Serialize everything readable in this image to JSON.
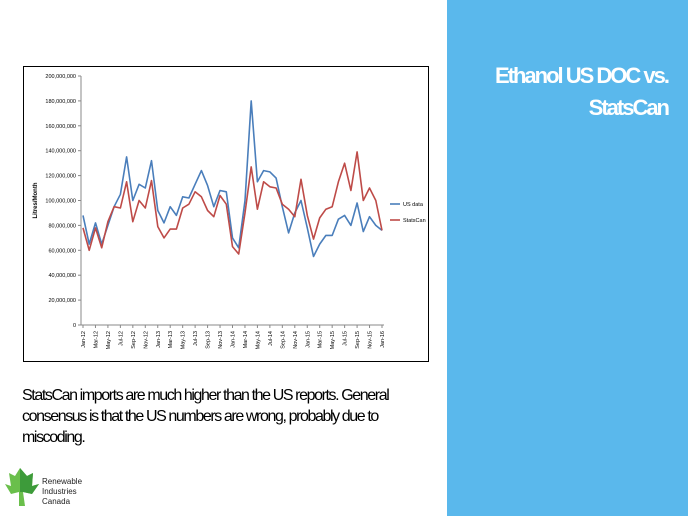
{
  "slide": {
    "title_line1": "Ethanol US DOC vs.",
    "title_line2": "StatsCan",
    "body": "StatsCan imports are much higher than the US reports. General consensus is that the US numbers are wrong, probably due to miscoding.",
    "logo_lines": [
      "Renewable",
      "Industries",
      "Canada"
    ]
  },
  "colors": {
    "sidebar": "#5ab8ec",
    "us_data": "#4a7ebb",
    "statscan": "#be4b48"
  },
  "chart_data": {
    "type": "line",
    "ylabel": "Litres/Month",
    "ylim": [
      0,
      200000000
    ],
    "yticks": [
      0,
      20000000,
      40000000,
      60000000,
      80000000,
      100000000,
      120000000,
      140000000,
      160000000,
      180000000,
      200000000
    ],
    "ytick_labels": [
      "0",
      "20,000,000",
      "40,000,000",
      "60,000,000",
      "80,000,000",
      "100,000,000",
      "120,000,000",
      "140,000,000",
      "160,000,000",
      "180,000,000",
      "200,000,000"
    ],
    "x_count": 49,
    "xtick_labels": [
      "Jan-12",
      "Mar-12",
      "May-12",
      "Jul-12",
      "Sep-12",
      "Nov-12",
      "Jan-13",
      "Mar-13",
      "May-13",
      "Jul-13",
      "Sep-13",
      "Nov-13",
      "Jan-14",
      "Mar-14",
      "May-14",
      "Jul-14",
      "Sep-14",
      "Nov-14",
      "Jan-15",
      "Mar-15",
      "May-15",
      "Jul-15",
      "Sep-15",
      "Nov-15",
      "Jan-16"
    ],
    "legend_position": "right",
    "series": [
      {
        "name": "US data",
        "values": [
          88,
          65,
          82,
          65,
          80,
          95,
          105,
          135,
          100,
          113,
          110,
          132,
          92,
          82,
          95,
          88,
          103,
          102,
          113,
          124,
          112,
          95,
          108,
          107,
          70,
          62,
          100,
          180,
          115,
          124,
          123,
          118,
          95,
          74,
          90,
          100,
          78,
          55,
          65,
          72,
          72,
          85,
          88,
          80,
          98,
          75,
          87,
          80,
          76
        ]
      },
      {
        "name": "StatsCan",
        "values": [
          78,
          60,
          78,
          62,
          83,
          95,
          94,
          115,
          83,
          100,
          94,
          116,
          79,
          70,
          77,
          77,
          94,
          97,
          107,
          103,
          92,
          87,
          104,
          97,
          63,
          57,
          90,
          127,
          93,
          115,
          111,
          110,
          97,
          93,
          87,
          117,
          88,
          69,
          86,
          93,
          95,
          115,
          130,
          108,
          139,
          100,
          110,
          100,
          76
        ]
      }
    ]
  }
}
